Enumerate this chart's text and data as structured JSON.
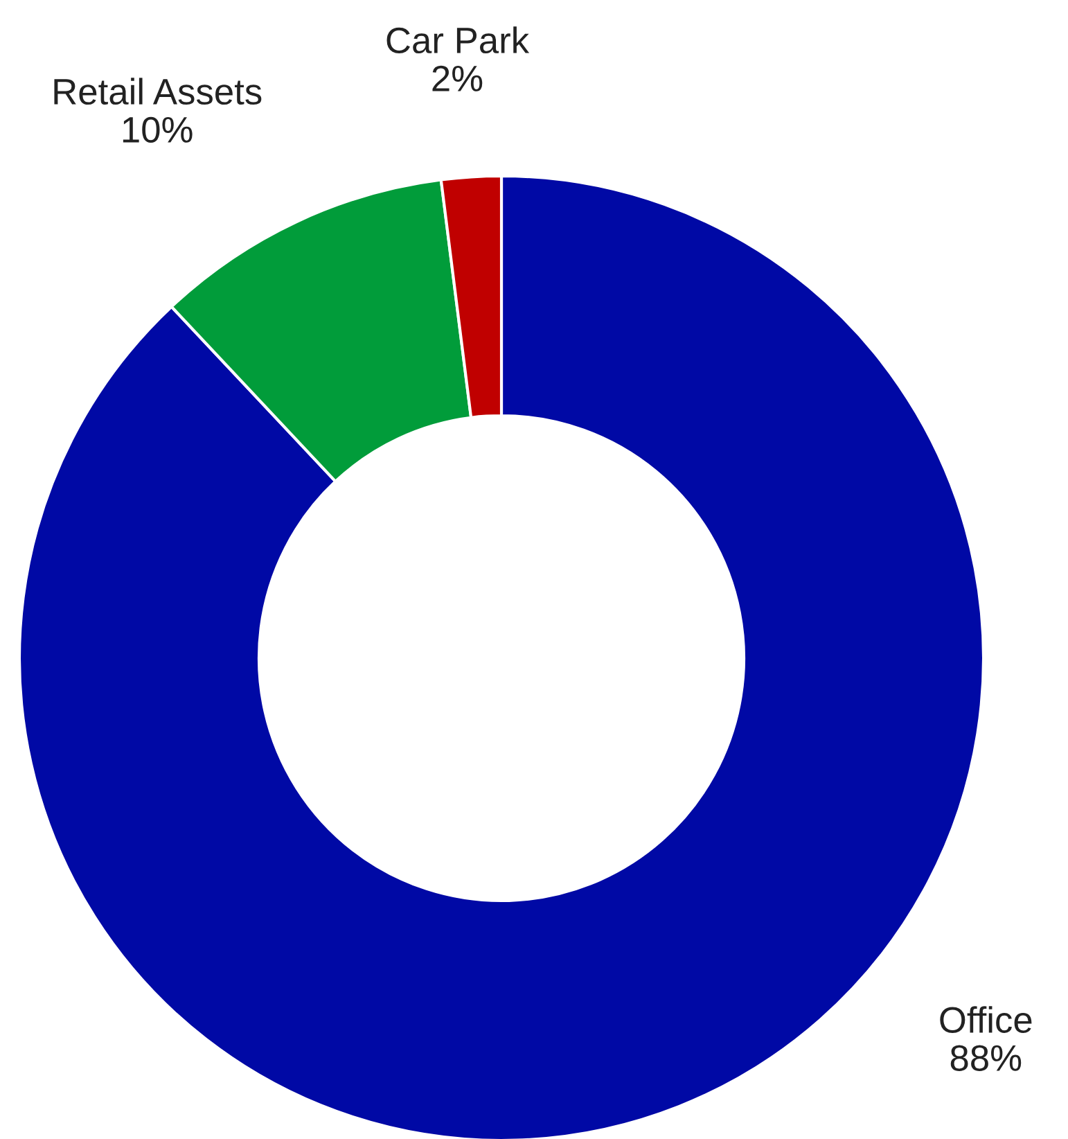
{
  "chart_data": {
    "type": "donut",
    "categories": [
      "Office",
      "Retail Assets",
      "Car Park"
    ],
    "values": [
      88,
      10,
      2
    ],
    "colors": [
      "#0009a5",
      "#019c3a",
      "#c00000"
    ],
    "value_labels": [
      "88%",
      "10%",
      "2%"
    ],
    "legend": false
  }
}
